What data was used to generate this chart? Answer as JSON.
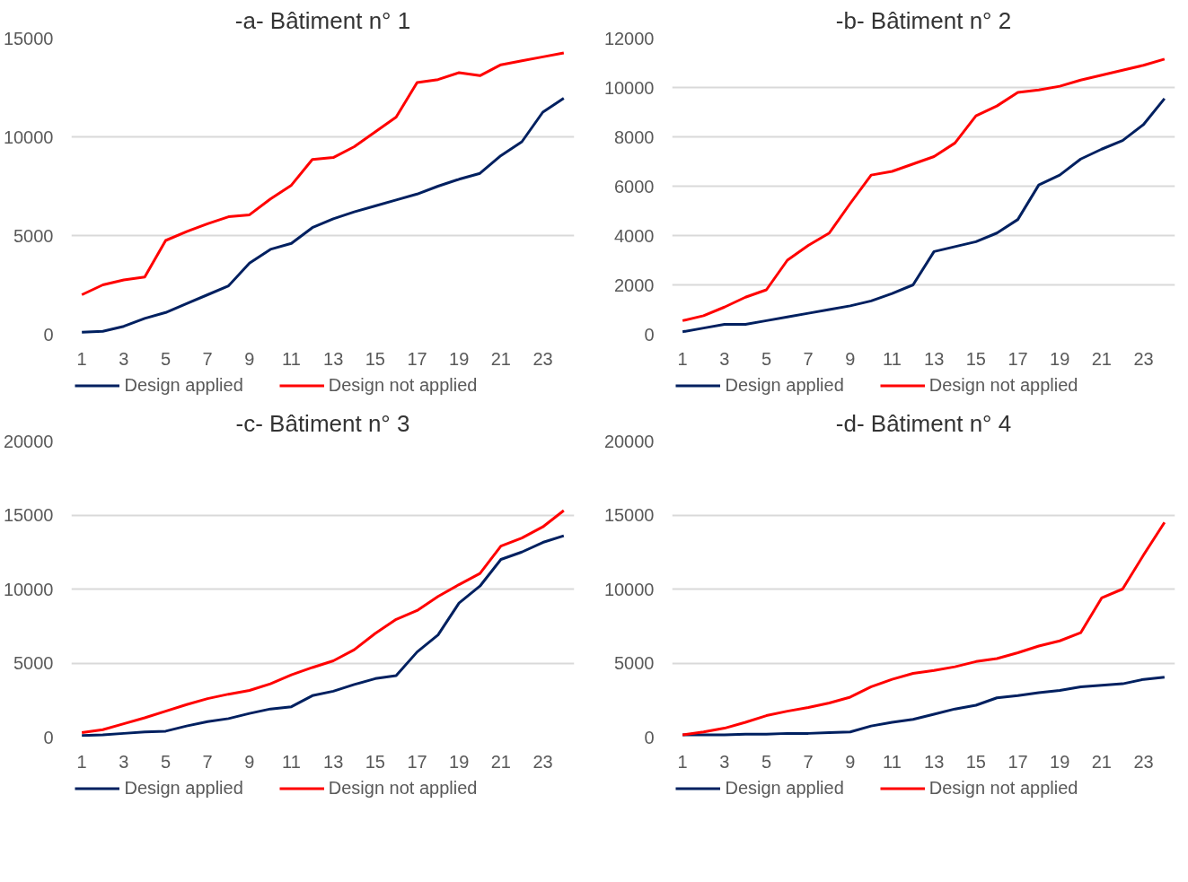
{
  "chart_data": [
    {
      "type": "line",
      "title": "-a- Bâtiment n° 1",
      "x": [
        1,
        2,
        3,
        4,
        5,
        6,
        7,
        8,
        9,
        10,
        11,
        12,
        13,
        14,
        15,
        16,
        17,
        18,
        19,
        20,
        21,
        22,
        23,
        24
      ],
      "xlim": [
        0.5,
        24.5
      ],
      "xticks": [
        1,
        3,
        5,
        7,
        9,
        11,
        13,
        15,
        17,
        19,
        21,
        23
      ],
      "ylim": [
        0,
        15000
      ],
      "yticks": [
        0,
        5000,
        10000,
        15000
      ],
      "grid": "y",
      "legend": "bottom",
      "series": [
        {
          "name": "Design applied",
          "color": "#002060",
          "values": [
            100,
            150,
            400,
            800,
            1100,
            1550,
            2000,
            2450,
            3600,
            4300,
            4600,
            5400,
            5850,
            6200,
            6500,
            6800,
            7100,
            7500,
            7850,
            8150,
            9050,
            9750,
            11250,
            11950
          ]
        },
        {
          "name": "Design not applied",
          "color": "#ff0000",
          "values": [
            2000,
            2500,
            2750,
            2900,
            4750,
            5200,
            5600,
            5950,
            6050,
            6850,
            7550,
            8850,
            8950,
            9500,
            10250,
            11000,
            12750,
            12900,
            13250,
            13100,
            13650,
            13850,
            14050,
            14250
          ]
        }
      ]
    },
    {
      "type": "line",
      "title": "-b- Bâtiment n° 2",
      "x": [
        1,
        2,
        3,
        4,
        5,
        6,
        7,
        8,
        9,
        10,
        11,
        12,
        13,
        14,
        15,
        16,
        17,
        18,
        19,
        20,
        21,
        22,
        23,
        24
      ],
      "xlim": [
        0.5,
        24.5
      ],
      "xticks": [
        1,
        3,
        5,
        7,
        9,
        11,
        13,
        15,
        17,
        19,
        21,
        23
      ],
      "ylim": [
        0,
        12000
      ],
      "yticks": [
        0,
        2000,
        4000,
        6000,
        8000,
        10000,
        12000
      ],
      "grid": "y",
      "legend": "bottom",
      "series": [
        {
          "name": "Design applied",
          "color": "#002060",
          "values": [
            100,
            250,
            400,
            400,
            550,
            700,
            850,
            1000,
            1150,
            1350,
            1650,
            2000,
            3350,
            3550,
            3750,
            4100,
            4650,
            6050,
            6450,
            7100,
            7500,
            7850,
            8500,
            9550
          ]
        },
        {
          "name": "Design not applied",
          "color": "#ff0000",
          "values": [
            550,
            750,
            1100,
            1500,
            1800,
            3000,
            3600,
            4100,
            5300,
            6450,
            6600,
            6900,
            7200,
            7750,
            8850,
            9250,
            9800,
            9900,
            10050,
            10300,
            10500,
            10700,
            10900,
            11150
          ]
        }
      ]
    },
    {
      "type": "line",
      "title": "-c- Bâtiment n° 3",
      "x": [
        1,
        2,
        3,
        4,
        5,
        6,
        7,
        8,
        9,
        10,
        11,
        12,
        13,
        14,
        15,
        16,
        17,
        18,
        19,
        20,
        21,
        22,
        23,
        24
      ],
      "xlim": [
        0.5,
        24.5
      ],
      "xticks": [
        1,
        3,
        5,
        7,
        9,
        11,
        13,
        15,
        17,
        19,
        21,
        23
      ],
      "ylim": [
        0,
        20000
      ],
      "yticks": [
        0,
        5000,
        10000,
        15000,
        20000
      ],
      "grid": "y",
      "legend": "bottom",
      "series": [
        {
          "name": "Design applied",
          "color": "#002060",
          "values": [
            100,
            150,
            250,
            350,
            400,
            750,
            1050,
            1250,
            1600,
            1900,
            2050,
            2800,
            3100,
            3550,
            3950,
            4150,
            5750,
            6900,
            9050,
            10200,
            12000,
            12500,
            13150,
            13600
          ]
        },
        {
          "name": "Design not applied",
          "color": "#ff0000",
          "values": [
            300,
            500,
            900,
            1300,
            1750,
            2200,
            2600,
            2900,
            3150,
            3600,
            4200,
            4700,
            5150,
            5900,
            7000,
            7950,
            8550,
            9500,
            10300,
            11050,
            12900,
            13450,
            14200,
            15300
          ]
        }
      ]
    },
    {
      "type": "line",
      "title": "-d- Bâtiment n° 4",
      "x": [
        1,
        2,
        3,
        4,
        5,
        6,
        7,
        8,
        9,
        10,
        11,
        12,
        13,
        14,
        15,
        16,
        17,
        18,
        19,
        20,
        21,
        22,
        23,
        24
      ],
      "xlim": [
        0.5,
        24.5
      ],
      "xticks": [
        1,
        3,
        5,
        7,
        9,
        11,
        13,
        15,
        17,
        19,
        21,
        23
      ],
      "ylim": [
        0,
        20000
      ],
      "yticks": [
        0,
        5000,
        10000,
        15000,
        20000
      ],
      "grid": "y",
      "legend": "bottom",
      "series": [
        {
          "name": "Design applied",
          "color": "#002060",
          "values": [
            150,
            150,
            150,
            200,
            200,
            250,
            250,
            300,
            350,
            750,
            1000,
            1200,
            1550,
            1900,
            2150,
            2650,
            2800,
            3000,
            3150,
            3400,
            3500,
            3600,
            3900,
            4050
          ]
        },
        {
          "name": "Design not applied",
          "color": "#ff0000",
          "values": [
            150,
            350,
            600,
            1000,
            1450,
            1750,
            2000,
            2300,
            2700,
            3400,
            3900,
            4300,
            4500,
            4750,
            5100,
            5300,
            5700,
            6150,
            6500,
            7050,
            9400,
            10000,
            12300,
            14500
          ]
        }
      ]
    }
  ]
}
